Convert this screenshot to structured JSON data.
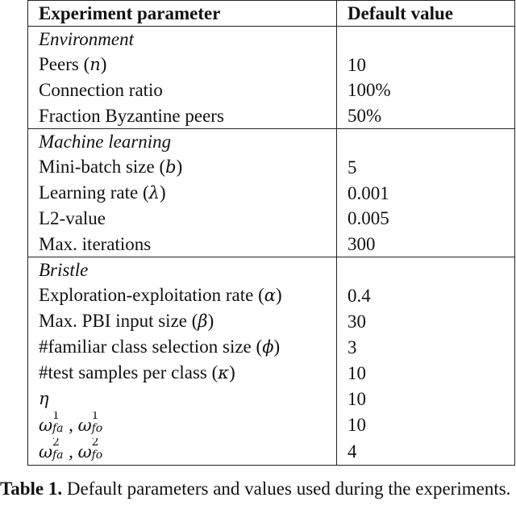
{
  "table": {
    "header": {
      "param": "Experiment parameter",
      "value": "Default value"
    },
    "environment": {
      "title": "Environment",
      "rows": [
        {
          "label": "Peers",
          "symbol": "n",
          "value": "10"
        },
        {
          "label": "Connection ratio",
          "value": "100%"
        },
        {
          "label": "Fraction Byzantine peers",
          "value": "50%"
        }
      ]
    },
    "ml": {
      "title": "Machine learning",
      "rows": [
        {
          "label": "Mini-batch size",
          "symbol": "b",
          "value": "5"
        },
        {
          "label": "Learning rate",
          "symbol": "λ",
          "value": "0.001"
        },
        {
          "label": "L2-value",
          "value": "0.005"
        },
        {
          "label": "Max. iterations",
          "value": "300"
        }
      ]
    },
    "bristle": {
      "title": "Bristle",
      "rows": [
        {
          "label": "Exploration-exploitation rate",
          "symbol": "α",
          "value": "0.4"
        },
        {
          "label": "Max. PBI input size",
          "symbol": "β",
          "value": "30"
        },
        {
          "label": "#familiar class selection size",
          "symbol": "ϕ",
          "value": "3"
        },
        {
          "label": "#test samples per class",
          "symbol": "κ",
          "value": "10"
        },
        {
          "label": "η",
          "value": "10"
        }
      ],
      "omega1": {
        "base": "ω",
        "sup": "1",
        "sub_a": "fa",
        "sub_b": "fo",
        "separator": ",",
        "value": "10"
      },
      "omega2": {
        "base": "ω",
        "sup": "2",
        "sub_a": "fa",
        "sub_b": "fo",
        "separator": ",",
        "value": "4"
      }
    }
  },
  "caption": {
    "label": "Table 1.",
    "text": "Default parameters and values used during the experiments."
  }
}
